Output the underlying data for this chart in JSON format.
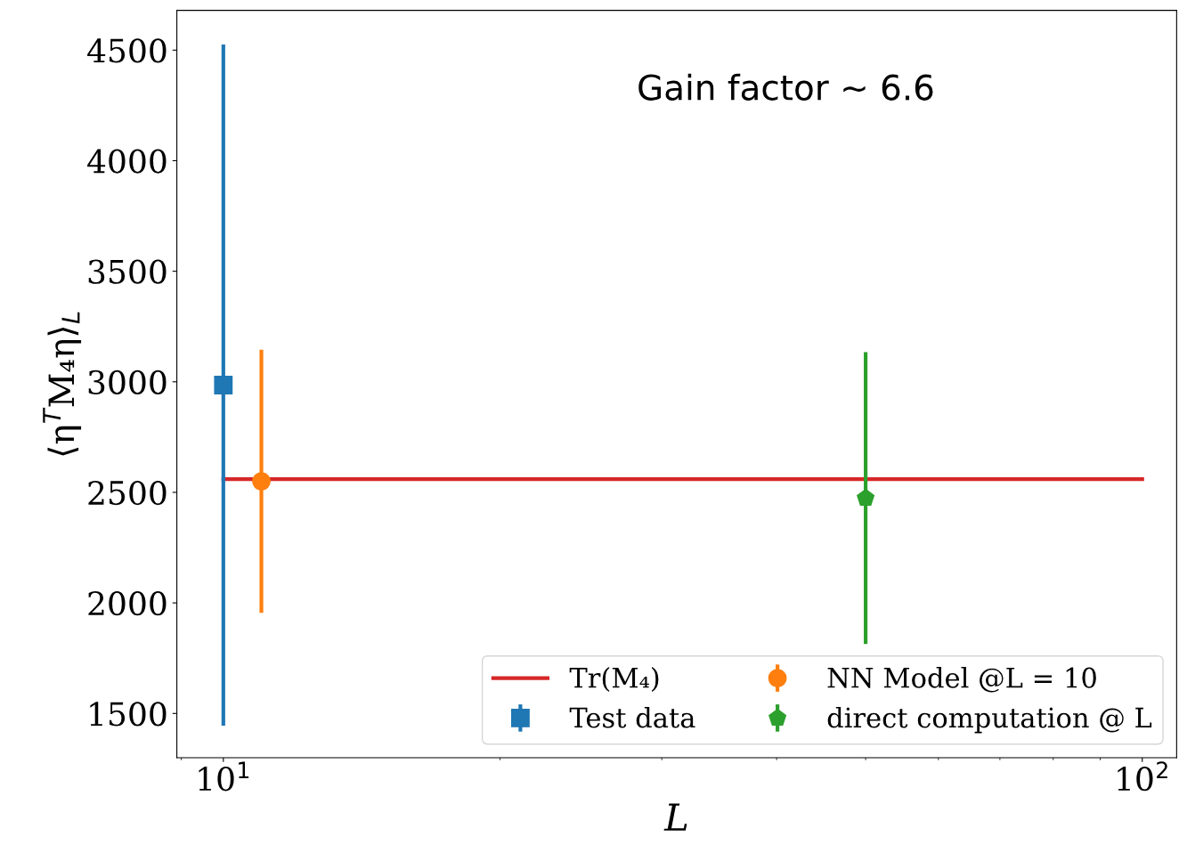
{
  "chart_data": {
    "type": "scatter",
    "xlabel": "L",
    "ylabel": "⟨η$^{T}$M₄η⟩$_{L}$",
    "log": "x",
    "xlim": [
      8.9,
      109
    ],
    "xticks": [
      {
        "value": 10,
        "label": "10$^{1}$"
      },
      {
        "value": 100,
        "label": "10$^{2}$"
      }
    ],
    "ylim": [
      1300,
      4680
    ],
    "yticks": [
      1500,
      2000,
      2500,
      3000,
      3500,
      4000,
      4500
    ],
    "series": [
      {
        "name": "Tr(M₄)",
        "type": "line",
        "color": "#d62728",
        "x": [
          10,
          100
        ],
        "values": [
          2560,
          2560
        ],
        "marker": "none",
        "line_style": "solid"
      },
      {
        "name": "Test data",
        "color": "#1f77b4",
        "x": [
          10
        ],
        "values": [
          2985
        ],
        "errors": [
          1540
        ],
        "marker": "square"
      },
      {
        "name": "NN Model @L = 10",
        "color": "#ff7f0e",
        "x": [
          11
        ],
        "values": [
          2550
        ],
        "errors": [
          595
        ],
        "marker": "circle"
      },
      {
        "name": "direct computation @ L",
        "color": "#2ca02c",
        "x": [
          50
        ],
        "values": [
          2474
        ],
        "errors": [
          660
        ]
      }
    ],
    "annotations": [
      {
        "text": "Gain factor ~ 6.6"
      }
    ],
    "legend": "bottom right",
    "grid": false
  }
}
